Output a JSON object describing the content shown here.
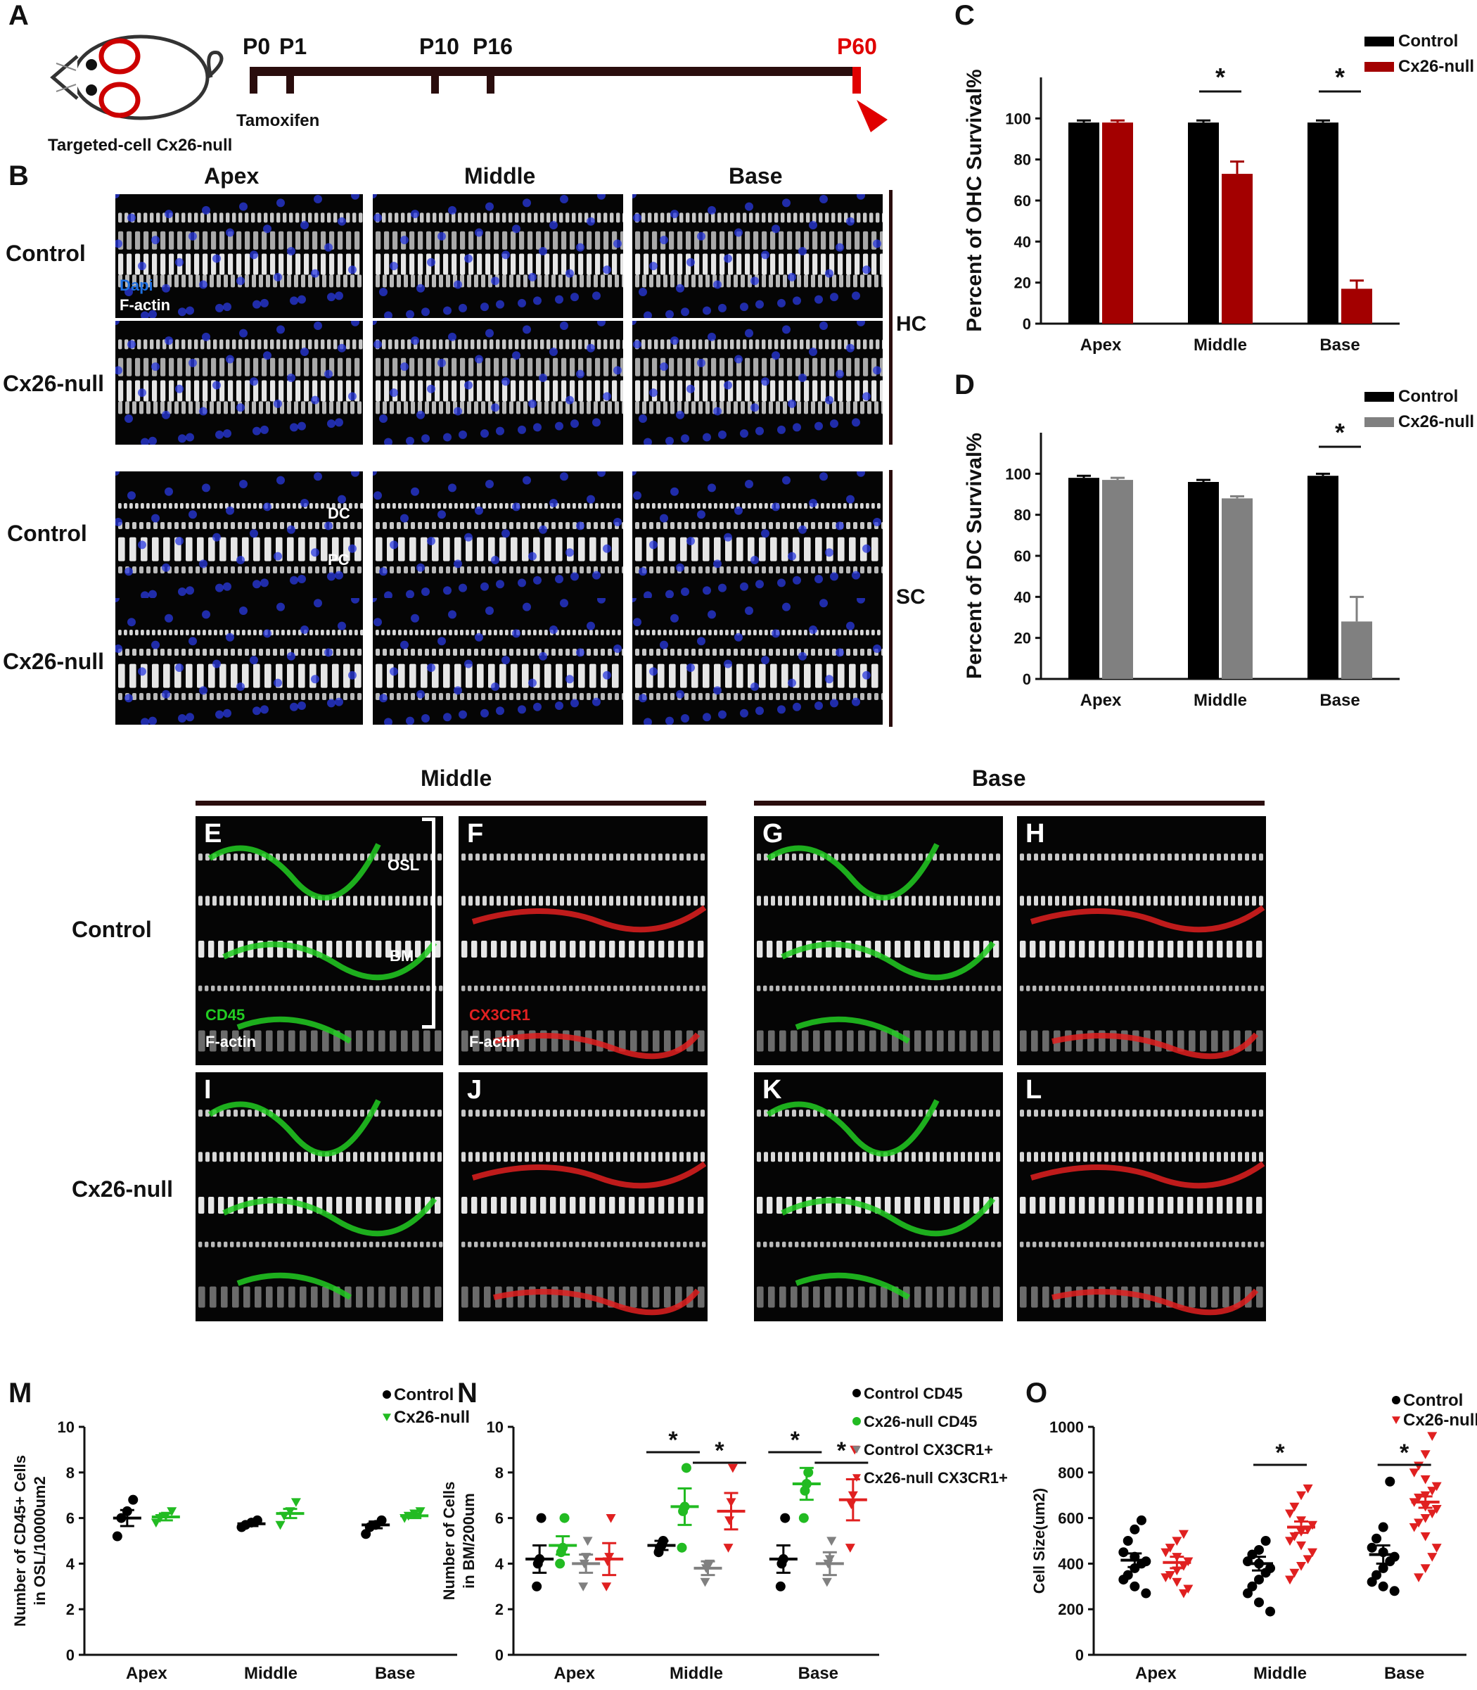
{
  "panel_letters": [
    "A",
    "B",
    "C",
    "D",
    "E",
    "F",
    "G",
    "H",
    "I",
    "J",
    "K",
    "L",
    "M",
    "N",
    "O"
  ],
  "timeline": {
    "mouse_caption": "Targeted-cell Cx26-null",
    "ticks": [
      "P0",
      "P1",
      "P10",
      "P16",
      "P60"
    ],
    "tamoxifen": "Tamoxifen"
  },
  "panelB": {
    "columns": [
      "Apex",
      "Middle",
      "Base"
    ],
    "rows": [
      "Control",
      "Cx26-null",
      "Control",
      "Cx26-null"
    ],
    "groups": [
      "HC",
      "SC"
    ],
    "stain_dapi": "Dapi",
    "stain_factin": "F-actin",
    "dc": "DC",
    "pc": "PC"
  },
  "panelEL": {
    "regions": [
      "Middle",
      "Base"
    ],
    "rows": [
      "Control",
      "Cx26-null"
    ],
    "osl": "OSL",
    "bm": "BM",
    "cd45": "CD45",
    "cx3cr1": "CX3CR1",
    "factin": "F-actin"
  },
  "chart_data": [
    {
      "id": "C",
      "type": "bar",
      "categories": [
        "Apex",
        "Middle",
        "Base"
      ],
      "series": [
        {
          "name": "Control",
          "values": [
            98,
            98,
            98
          ],
          "errors": [
            1,
            1,
            1
          ],
          "color": "#000000"
        },
        {
          "name": "Cx26-null",
          "values": [
            98,
            73,
            17
          ],
          "errors": [
            1,
            6,
            4
          ],
          "color": "#a30000"
        }
      ],
      "ylabel": "Percent of OHC Survival%",
      "ylim": [
        0,
        120
      ],
      "yticks": [
        0,
        20,
        40,
        60,
        80,
        100
      ],
      "significance": [
        "Middle",
        "Base"
      ]
    },
    {
      "id": "D",
      "type": "bar",
      "categories": [
        "Apex",
        "Middle",
        "Base"
      ],
      "series": [
        {
          "name": "Control",
          "values": [
            98,
            96,
            99
          ],
          "errors": [
            1,
            1,
            1
          ],
          "color": "#000000"
        },
        {
          "name": "Cx26-null",
          "values": [
            97,
            88,
            28
          ],
          "errors": [
            1,
            1,
            12
          ],
          "color": "#808080"
        }
      ],
      "ylabel": "Percent of DC Survival%",
      "ylim": [
        0,
        120
      ],
      "yticks": [
        0,
        20,
        40,
        60,
        80,
        100
      ],
      "significance": [
        "Base"
      ]
    },
    {
      "id": "M",
      "type": "scatter",
      "categories": [
        "Apex",
        "Middle",
        "Base"
      ],
      "series": [
        {
          "name": "Control",
          "marker": "circle",
          "color": "#000000",
          "points": [
            [
              6.8,
              6.3,
              6.0,
              5.2
            ],
            [
              5.9,
              5.8,
              5.7,
              5.6
            ],
            [
              5.9,
              5.7,
              5.6,
              5.3
            ]
          ],
          "mean": [
            6.0,
            5.75,
            5.7
          ],
          "sem": [
            0.35,
            0.1,
            0.15
          ]
        },
        {
          "name": "Cx26-null",
          "marker": "triangle",
          "color": "#22bb22",
          "points": [
            [
              6.3,
              6.1,
              6.0,
              5.8
            ],
            [
              6.7,
              6.3,
              6.1,
              5.7
            ],
            [
              6.3,
              6.2,
              6.1,
              6.0
            ]
          ],
          "mean": [
            6.05,
            6.2,
            6.1
          ],
          "sem": [
            0.15,
            0.2,
            0.1
          ]
        }
      ],
      "ylabel": "Number of CD45+ Cells\nin OSL/10000um2",
      "ylim": [
        0,
        10
      ],
      "yticks": [
        0,
        2,
        4,
        6,
        8,
        10
      ]
    },
    {
      "id": "N",
      "type": "scatter",
      "categories": [
        "Apex",
        "Middle",
        "Base"
      ],
      "series": [
        {
          "name": "Control CD45",
          "marker": "circle",
          "color": "#000000",
          "points": [
            [
              6.0,
              4.2,
              4.0,
              3.0
            ],
            [
              5.0,
              4.8,
              4.7,
              4.5
            ],
            [
              6.0,
              4.2,
              4.0,
              3.0
            ]
          ],
          "mean": [
            4.2,
            4.8,
            4.2
          ],
          "sem": [
            0.6,
            0.2,
            0.6
          ]
        },
        {
          "name": "Cx26-null CD45",
          "marker": "circle",
          "color": "#22bb22",
          "points": [
            [
              6.0,
              4.7,
              4.5,
              4.0
            ],
            [
              8.2,
              6.5,
              6.3,
              4.7
            ],
            [
              8.0,
              7.5,
              7.2,
              6.0
            ]
          ],
          "mean": [
            4.8,
            6.5,
            7.5
          ],
          "sem": [
            0.4,
            0.8,
            0.7
          ]
        },
        {
          "name": "Control CX3CR1+",
          "marker": "triangle",
          "color": "#808080",
          "points": [
            [
              5.0,
              4.3,
              4.0,
              3.0
            ],
            [
              4.0,
              3.9,
              3.8,
              3.2
            ],
            [
              5.0,
              4.2,
              4.0,
              3.2
            ]
          ],
          "mean": [
            4.0,
            3.8,
            4.0
          ],
          "sem": [
            0.4,
            0.3,
            0.5
          ]
        },
        {
          "name": "Cx26-null CX3CR1+",
          "marker": "triangle",
          "color": "#e02020",
          "points": [
            [
              6.0,
              4.3,
              4.1,
              3.0
            ],
            [
              8.2,
              6.7,
              5.9,
              4.7
            ],
            [
              9.0,
              7.0,
              6.6,
              4.7
            ]
          ],
          "mean": [
            4.2,
            6.3,
            6.8
          ],
          "sem": [
            0.7,
            0.8,
            0.9
          ]
        }
      ],
      "ylabel": "Number of Cells\nin BM/200um",
      "ylim": [
        0,
        10
      ],
      "yticks": [
        0,
        2,
        4,
        6,
        8,
        10
      ],
      "significance": [
        [
          "Middle",
          "CD45"
        ],
        [
          "Middle",
          "CX3CR1"
        ],
        [
          "Base",
          "CD45"
        ],
        [
          "Base",
          "CX3CR1"
        ]
      ]
    },
    {
      "id": "O",
      "type": "scatter",
      "categories": [
        "Apex",
        "Middle",
        "Base"
      ],
      "series": [
        {
          "name": "Control",
          "marker": "circle",
          "color": "#000000",
          "points": [
            [
              590,
              550,
              500,
              450,
              430,
              410,
              400,
              380,
              350,
              330,
              300,
              270
            ],
            [
              500,
              460,
              440,
              410,
              400,
              380,
              360,
              330,
              300,
              270,
              230,
              190
            ],
            [
              760,
              560,
              510,
              470,
              450,
              430,
              410,
              380,
              350,
              320,
              300,
              280
            ]
          ],
          "mean": [
            415,
            400,
            440
          ],
          "sem": [
            30,
            30,
            40
          ]
        },
        {
          "name": "Cx26-null",
          "marker": "triangle",
          "color": "#e02020",
          "points": [
            [
              530,
              500,
              470,
              450,
              430,
              410,
              390,
              370,
              350,
              340,
              320,
              290,
              270
            ],
            [
              730,
              700,
              650,
              620,
              590,
              570,
              550,
              540,
              520,
              500,
              480,
              450,
              420,
              390,
              360,
              330
            ],
            [
              960,
              880,
              830,
              800,
              770,
              740,
              720,
              700,
              690,
              670,
              650,
              640,
              620,
              600,
              580,
              560,
              520,
              470,
              430,
              380,
              340
            ]
          ],
          "mean": [
            405,
            560,
            670
          ],
          "sem": [
            25,
            25,
            25
          ]
        }
      ],
      "ylabel": "Cell Size(um2)",
      "ylim": [
        0,
        1000
      ],
      "yticks": [
        0,
        200,
        400,
        600,
        800,
        1000
      ],
      "significance": [
        "Middle",
        "Base"
      ]
    }
  ]
}
